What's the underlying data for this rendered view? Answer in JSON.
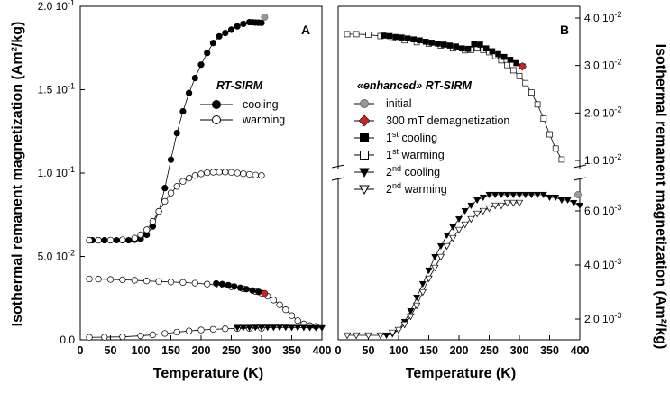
{
  "colors": {
    "red": "#cc2222",
    "grey": "#999999",
    "black": "#000000"
  },
  "chart_data": [
    {
      "panel": "A",
      "type": "line",
      "xlabel": "Temperature (K)",
      "ylabel": "Isothermal remanent magnetization (Am²/kg)",
      "xlim": [
        0,
        400
      ],
      "ylim": [
        0,
        0.2
      ],
      "xticks": [
        "0",
        "50",
        "100",
        "150",
        "200",
        "250",
        "300",
        "350",
        "400"
      ],
      "yticks": [
        {
          "v": 0,
          "base": "0.0",
          "exp": ""
        },
        {
          "v": 0.05,
          "base": "5.0 10",
          "exp": "-2"
        },
        {
          "v": 0.1,
          "base": "1.0 10",
          "exp": "-1"
        },
        {
          "v": 0.15,
          "base": "1.5 10",
          "exp": "-1"
        },
        {
          "v": 0.2,
          "base": "2.0 10",
          "exp": "-1"
        }
      ],
      "legend": {
        "title": "RT-SIRM",
        "cooling_label": "cooling",
        "warming_label": "warming"
      },
      "series": [
        {
          "name": "RT-SIRM cooling",
          "marker": "circle-filled",
          "x": [
            300,
            295,
            290,
            285,
            280,
            270,
            260,
            250,
            240,
            230,
            220,
            210,
            200,
            190,
            180,
            170,
            160,
            150,
            140,
            130,
            120,
            110,
            100,
            90,
            80,
            70,
            60,
            50,
            40,
            30,
            20,
            15
          ],
          "y": [
            0.1901,
            0.1902,
            0.1903,
            0.1904,
            0.1905,
            0.1895,
            0.188,
            0.186,
            0.184,
            0.182,
            0.178,
            0.172,
            0.165,
            0.157,
            0.148,
            0.137,
            0.124,
            0.108,
            0.091,
            0.077,
            0.068,
            0.063,
            0.0605,
            0.06,
            0.0597,
            0.0597,
            0.0597,
            0.0597,
            0.0597,
            0.0597,
            0.0597,
            0.0597
          ]
        },
        {
          "name": "RT-SIRM warming",
          "marker": "circle-open",
          "x": [
            15,
            30,
            50,
            70,
            90,
            100,
            110,
            120,
            130,
            140,
            150,
            160,
            170,
            180,
            190,
            200,
            210,
            220,
            230,
            240,
            250,
            260,
            270,
            280,
            290,
            300
          ],
          "y": [
            0.0597,
            0.0597,
            0.0598,
            0.06,
            0.061,
            0.063,
            0.066,
            0.071,
            0.077,
            0.083,
            0.088,
            0.092,
            0.095,
            0.097,
            0.0985,
            0.0995,
            0.1002,
            0.1005,
            0.1006,
            0.1006,
            0.1004,
            0.1,
            0.0996,
            0.0992,
            0.0988,
            0.0985
          ]
        },
        {
          "name": "initial",
          "marker": "circle-grey",
          "x": [
            305
          ],
          "y": [
            0.1935
          ]
        },
        {
          "name": "enhanced 1st warming",
          "marker": "circle-open",
          "x": [
            15,
            30,
            50,
            70,
            90,
            110,
            130,
            150,
            170,
            190,
            210,
            230,
            250,
            270,
            290,
            300,
            310,
            320,
            330,
            340,
            350,
            360,
            370,
            380,
            390
          ],
          "y": [
            0.0365,
            0.0364,
            0.0362,
            0.036,
            0.0357,
            0.0353,
            0.035,
            0.0347,
            0.0344,
            0.034,
            0.0334,
            0.0327,
            0.0318,
            0.0305,
            0.029,
            0.028,
            0.0262,
            0.0238,
            0.021,
            0.018,
            0.0145,
            0.0115,
            0.0095,
            0.0085,
            0.008
          ]
        },
        {
          "name": "enhanced 1st cooling",
          "marker": "circle-filled",
          "x": [
            305,
            295,
            285,
            275,
            265,
            255,
            245,
            235,
            225
          ],
          "y": [
            0.0278,
            0.0288,
            0.0296,
            0.0304,
            0.0312,
            0.032,
            0.0328,
            0.0334,
            0.0338
          ]
        },
        {
          "name": "300 mT demag",
          "marker": "circle-red",
          "x": [
            305
          ],
          "y": [
            0.0278
          ]
        },
        {
          "name": "enhanced 2nd warming",
          "marker": "circle-open",
          "x": [
            15,
            40,
            70,
            100,
            120,
            140,
            160,
            180,
            200,
            220,
            240,
            260,
            280,
            300
          ],
          "y": [
            0.0015,
            0.0016,
            0.0018,
            0.0024,
            0.003,
            0.0038,
            0.0046,
            0.0053,
            0.0059,
            0.0063,
            0.0066,
            0.0068,
            0.0069,
            0.0069
          ]
        },
        {
          "name": "enhanced 2nd cooling",
          "marker": "triangle-filled",
          "x": [
            400,
            390,
            380,
            370,
            360,
            350,
            340,
            330,
            320,
            310,
            300,
            290,
            280,
            270,
            260
          ],
          "y": [
            0.0071,
            0.0072,
            0.0072,
            0.0073,
            0.0073,
            0.0073,
            0.0074,
            0.0074,
            0.0074,
            0.0074,
            0.0074,
            0.0074,
            0.0073,
            0.0073,
            0.0073
          ]
        }
      ],
      "panel_label": "A"
    },
    {
      "panel": "B",
      "type": "line",
      "xlabel": "Temperature (K)",
      "ylabel": "Isothermal remanent magnetization (Am²/kg)",
      "xlim": [
        0,
        400
      ],
      "ylim_upper": [
        0.01,
        0.04
      ],
      "ylim_lower": [
        0.0014,
        0.0068
      ],
      "xticks": [
        "0",
        "50",
        "100",
        "150",
        "200",
        "250",
        "300",
        "350",
        "400"
      ],
      "yticks_upper": [
        {
          "v": 0.01,
          "base": "1.0 10",
          "exp": "-2"
        },
        {
          "v": 0.02,
          "base": "2.0 10",
          "exp": "-2"
        },
        {
          "v": 0.03,
          "base": "3.0 10",
          "exp": "-2"
        },
        {
          "v": 0.04,
          "base": "4.0 10",
          "exp": "-2"
        }
      ],
      "yticks_lower": [
        {
          "v": 0.002,
          "base": "2.0 10",
          "exp": "-3"
        },
        {
          "v": 0.004,
          "base": "4.0 10",
          "exp": "-3"
        },
        {
          "v": 0.006,
          "base": "6.0 10",
          "exp": "-3"
        }
      ],
      "legend": {
        "title": "«enhanced» RT-SIRM",
        "initial_label": "initial",
        "demag_label": "300 mT demagnetization",
        "c1_base": "1",
        "c1_sup": "st",
        "c1_rest": " cooling",
        "w1_base": "1",
        "w1_sup": "st",
        "w1_rest": " warming",
        "c2_base": "2",
        "c2_sup": "nd",
        "c2_rest": " cooling",
        "w2_base": "2",
        "w2_sup": "nd",
        "w2_rest": " warming"
      },
      "series": [
        {
          "name": "1st warming",
          "marker": "square-open",
          "axis": "upper",
          "x": [
            15,
            30,
            50,
            70,
            90,
            110,
            130,
            150,
            170,
            190,
            210,
            220,
            230,
            240,
            250,
            260,
            270,
            280,
            290,
            300,
            310,
            320,
            330,
            340,
            350,
            360,
            370
          ],
          "y": [
            0.0366,
            0.0366,
            0.0365,
            0.0362,
            0.0358,
            0.0353,
            0.0349,
            0.0346,
            0.0342,
            0.0336,
            0.0332,
            0.0333,
            0.0336,
            0.0333,
            0.0328,
            0.032,
            0.0311,
            0.0301,
            0.029,
            0.0278,
            0.0263,
            0.0243,
            0.0218,
            0.0188,
            0.0155,
            0.0125,
            0.0102
          ]
        },
        {
          "name": "1st cooling",
          "marker": "square-filled",
          "axis": "upper",
          "x": [
            305,
            295,
            285,
            275,
            265,
            255,
            245,
            235,
            225,
            215,
            205,
            195,
            185,
            175,
            165,
            155,
            145,
            135,
            125,
            115,
            105,
            95,
            85,
            75
          ],
          "y": [
            0.0298,
            0.0305,
            0.0312,
            0.0318,
            0.0324,
            0.033,
            0.0336,
            0.0344,
            0.0345,
            0.0335,
            0.0336,
            0.034,
            0.0342,
            0.0344,
            0.0346,
            0.0348,
            0.035,
            0.0353,
            0.0355,
            0.0357,
            0.0359,
            0.036,
            0.0362,
            0.0363
          ]
        },
        {
          "name": "300 mT demagnetization",
          "marker": "diamond-red",
          "axis": "upper",
          "x": [
            305
          ],
          "y": [
            0.0298
          ]
        },
        {
          "name": "2nd cooling",
          "marker": "triangle-filled",
          "axis": "lower",
          "x": [
            400,
            390,
            380,
            370,
            360,
            350,
            340,
            330,
            320,
            310,
            300,
            290,
            280,
            270,
            260,
            250,
            240,
            230,
            220,
            210,
            200,
            190,
            180,
            170,
            160,
            150,
            140,
            130,
            120,
            110,
            100,
            90,
            80
          ],
          "y": [
            0.0062,
            0.0063,
            0.0064,
            0.0064,
            0.0065,
            0.0065,
            0.0066,
            0.0066,
            0.0066,
            0.0066,
            0.0066,
            0.0066,
            0.0066,
            0.0066,
            0.0066,
            0.0066,
            0.0065,
            0.0064,
            0.0062,
            0.006,
            0.0057,
            0.0054,
            0.0051,
            0.0047,
            0.0043,
            0.0038,
            0.0033,
            0.0028,
            0.0023,
            0.0019,
            0.0016,
            0.00145,
            0.0014
          ]
        },
        {
          "name": "2nd warming",
          "marker": "triangle-open",
          "axis": "lower",
          "x": [
            15,
            30,
            50,
            70,
            90,
            100,
            110,
            120,
            130,
            140,
            150,
            160,
            170,
            180,
            190,
            200,
            210,
            220,
            230,
            240,
            250,
            260,
            270,
            280,
            290,
            300
          ],
          "y": [
            0.0014,
            0.0014,
            0.0014,
            0.0014,
            0.0015,
            0.0016,
            0.0018,
            0.0021,
            0.0025,
            0.003,
            0.0035,
            0.0039,
            0.0043,
            0.0047,
            0.005,
            0.0053,
            0.0055,
            0.0057,
            0.0059,
            0.006,
            0.0061,
            0.0062,
            0.0062,
            0.0063,
            0.0063,
            0.0063
          ]
        },
        {
          "name": "initial",
          "marker": "circle-grey",
          "axis": "lower",
          "x": [
            397
          ],
          "y": [
            0.0066
          ]
        }
      ],
      "panel_label": "B"
    }
  ]
}
